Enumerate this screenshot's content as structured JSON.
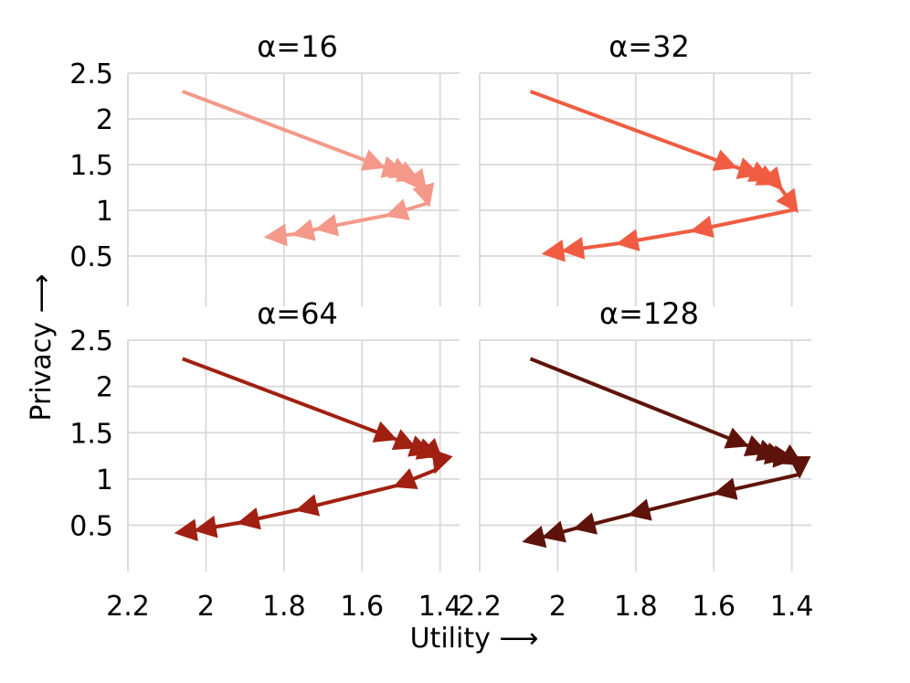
{
  "chart_data": [
    {
      "type": "line",
      "title": "α=16",
      "color": "#f4998a",
      "x": [
        2.06,
        1.55,
        1.5,
        1.48,
        1.46,
        1.44,
        1.43,
        1.53,
        1.71,
        1.77,
        1.84
      ],
      "y": [
        2.3,
        1.48,
        1.42,
        1.38,
        1.34,
        1.23,
        1.08,
        0.95,
        0.8,
        0.74,
        0.71
      ]
    },
    {
      "type": "line",
      "title": "α=32",
      "color": "#ef5c41",
      "x": [
        2.07,
        1.55,
        1.49,
        1.46,
        1.44,
        1.43,
        1.39,
        1.65,
        1.84,
        1.98,
        2.03
      ],
      "y": [
        2.3,
        1.48,
        1.4,
        1.34,
        1.3,
        1.25,
        1.01,
        0.78,
        0.64,
        0.56,
        0.53
      ]
    },
    {
      "type": "line",
      "title": "α=64",
      "color": "#a12011",
      "x": [
        2.06,
        1.52,
        1.47,
        1.43,
        1.41,
        1.4,
        1.41,
        1.51,
        1.76,
        1.91,
        2.02,
        2.07
      ],
      "y": [
        2.3,
        1.44,
        1.35,
        1.29,
        1.26,
        1.22,
        1.1,
        0.93,
        0.67,
        0.53,
        0.45,
        0.42
      ]
    },
    {
      "type": "line",
      "title": "α=128",
      "color": "#5e130a",
      "x": [
        2.07,
        1.52,
        1.47,
        1.44,
        1.42,
        1.4,
        1.38,
        1.38,
        1.59,
        1.81,
        1.95,
        2.03,
        2.08
      ],
      "y": [
        2.3,
        1.37,
        1.29,
        1.25,
        1.23,
        1.22,
        1.17,
        1.05,
        0.85,
        0.62,
        0.47,
        0.38,
        0.33
      ]
    }
  ],
  "axes": {
    "xlabel": "Utility ⟶",
    "ylabel": "Privacy ⟶",
    "x_ticks": [
      "2.2",
      "2",
      "1.8",
      "1.6",
      "1.4"
    ],
    "x_tick_values": [
      2.2,
      2.0,
      1.8,
      1.6,
      1.4
    ],
    "y_ticks": [
      "0.5",
      "1",
      "1.5",
      "2",
      "2.5"
    ],
    "y_tick_values": [
      0.5,
      1.0,
      1.5,
      2.0,
      2.5
    ],
    "xlim": [
      2.2,
      1.35
    ],
    "ylim": [
      0.0,
      2.6
    ],
    "x_inverted": true,
    "grid": true
  }
}
